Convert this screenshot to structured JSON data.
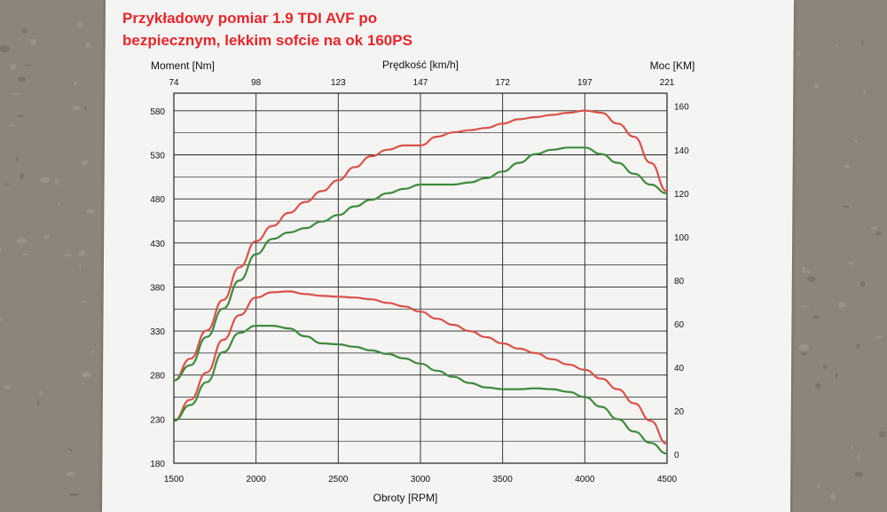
{
  "annotation": {
    "line1": "Przykładowy pomiar 1.9 TDI AVF po",
    "line2": "bezpiecznym, lekkim sofcie na ok 160PS"
  },
  "colors": {
    "paper": "#f4f4f3",
    "annotation": "#e8262b",
    "after_curve": "#d9524a",
    "before_curve": "#3f8a3d",
    "grid": "#222222"
  },
  "chart_data": {
    "type": "line",
    "xlabel": "Obroty [RPM]",
    "ylabel_left": "Moment [Nm]",
    "ylabel_right": "Moc [KM]",
    "xlabel_top": "Prędkość [km/h]",
    "xlim": [
      1500,
      4500
    ],
    "ylim_left": [
      180,
      600
    ],
    "ylim_right": [
      -4,
      166
    ],
    "grid": true,
    "x_ticks": [
      {
        "label": "1500",
        "value": 1500
      },
      {
        "label": "2000",
        "value": 2000
      },
      {
        "label": "2500",
        "value": 2500
      },
      {
        "label": "3000",
        "value": 3000
      },
      {
        "label": "3500",
        "value": 3500
      },
      {
        "label": "4000",
        "value": 4000
      },
      {
        "label": "4500",
        "value": 4500
      }
    ],
    "speed_ticks": [
      {
        "label": "74",
        "value": 1500
      },
      {
        "label": "98",
        "value": 2000
      },
      {
        "label": "123",
        "value": 2500
      },
      {
        "label": "147",
        "value": 3000
      },
      {
        "label": "172",
        "value": 3500
      },
      {
        "label": "197",
        "value": 4000
      },
      {
        "label": "221",
        "value": 4500
      }
    ],
    "y_left_ticks": [
      {
        "label": "580",
        "value": 580
      },
      {
        "label": "530",
        "value": 530
      },
      {
        "label": "480",
        "value": 480
      },
      {
        "label": "430",
        "value": 430
      },
      {
        "label": "380",
        "value": 380
      },
      {
        "label": "330",
        "value": 330
      },
      {
        "label": "280",
        "value": 280
      },
      {
        "label": "230",
        "value": 230
      },
      {
        "label": "180",
        "value": 180
      }
    ],
    "y_right_ticks": [
      {
        "label": "160",
        "value": 160
      },
      {
        "label": "140",
        "value": 140
      },
      {
        "label": "120",
        "value": 120
      },
      {
        "label": "100",
        "value": 100
      },
      {
        "label": "80",
        "value": 80
      },
      {
        "label": "60",
        "value": 60
      },
      {
        "label": "40",
        "value": 40
      },
      {
        "label": "20",
        "value": 20
      },
      {
        "label": "0",
        "value": 0
      }
    ],
    "series": [
      {
        "role": "power-after",
        "axis": "right",
        "color": "#d9524a",
        "x": [
          1500,
          1600,
          1700,
          1800,
          1900,
          2000,
          2100,
          2200,
          2300,
          2400,
          2500,
          2600,
          2700,
          2800,
          2900,
          3000,
          3100,
          3200,
          3300,
          3400,
          3500,
          3600,
          3700,
          3800,
          3900,
          4000,
          4100,
          4200,
          4300,
          4400,
          4500
        ],
        "y": [
          34,
          44,
          57,
          71,
          86,
          98,
          105,
          111,
          116,
          121,
          126,
          132,
          137,
          140,
          142,
          142,
          146,
          148,
          149,
          150,
          152,
          154,
          155,
          156,
          157,
          158,
          157,
          152,
          146,
          134,
          121
        ]
      },
      {
        "role": "power-before",
        "axis": "right",
        "color": "#3f8a3d",
        "x": [
          1500,
          1600,
          1700,
          1800,
          1900,
          2000,
          2100,
          2200,
          2300,
          2400,
          2500,
          2600,
          2700,
          2800,
          2900,
          3000,
          3100,
          3200,
          3300,
          3400,
          3500,
          3600,
          3700,
          3800,
          3900,
          4000,
          4100,
          4200,
          4300,
          4400,
          4500
        ],
        "y": [
          34,
          41,
          54,
          67,
          80,
          92,
          99,
          102,
          104,
          107,
          110,
          114,
          117,
          120,
          122,
          124,
          124,
          124,
          125,
          127,
          130,
          134,
          138,
          140,
          141,
          141,
          138,
          134,
          129,
          124,
          120
        ]
      },
      {
        "role": "torque-after",
        "axis": "left",
        "color": "#d9524a",
        "x": [
          1500,
          1600,
          1700,
          1800,
          1900,
          2000,
          2100,
          2200,
          2300,
          2400,
          2500,
          2600,
          2700,
          2800,
          2900,
          3000,
          3100,
          3200,
          3300,
          3400,
          3500,
          3600,
          3700,
          3800,
          3900,
          4000,
          4100,
          4200,
          4300,
          4400,
          4500
        ],
        "y": [
          228,
          252,
          283,
          320,
          348,
          368,
          374,
          375,
          372,
          370,
          369,
          368,
          366,
          362,
          358,
          352,
          344,
          337,
          330,
          323,
          316,
          310,
          305,
          298,
          292,
          286,
          276,
          264,
          248,
          228,
          202
        ]
      },
      {
        "role": "torque-before",
        "axis": "left",
        "color": "#3f8a3d",
        "x": [
          1500,
          1600,
          1700,
          1800,
          1900,
          2000,
          2100,
          2200,
          2300,
          2400,
          2500,
          2600,
          2700,
          2800,
          2900,
          3000,
          3100,
          3200,
          3300,
          3400,
          3500,
          3600,
          3700,
          3800,
          3900,
          4000,
          4100,
          4200,
          4300,
          4400,
          4500
        ],
        "y": [
          228,
          246,
          272,
          306,
          328,
          336,
          336,
          333,
          324,
          316,
          315,
          312,
          308,
          304,
          299,
          293,
          285,
          278,
          271,
          266,
          264,
          264,
          265,
          264,
          261,
          255,
          244,
          230,
          216,
          203,
          191
        ]
      }
    ]
  }
}
